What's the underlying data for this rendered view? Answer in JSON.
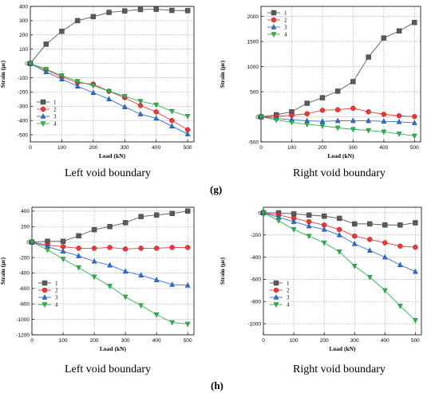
{
  "row_labels": {
    "g": "(g)",
    "h": "(h)"
  },
  "chart_data": [
    {
      "id": "g-left",
      "type": "line",
      "caption": "Left void boundary",
      "xlabel": "Load (kN)",
      "ylabel": "Strain (με)",
      "xlim": [
        0,
        520
      ],
      "ylim": [
        -550,
        400
      ],
      "xticks": [
        0,
        100,
        200,
        300,
        400,
        500
      ],
      "yticks": [
        -500,
        -400,
        -300,
        -200,
        -100,
        0,
        100,
        200,
        300,
        400
      ],
      "grid": true,
      "legend_position": "bottom-left",
      "x": [
        0,
        50,
        100,
        150,
        200,
        250,
        300,
        350,
        400,
        450,
        500
      ],
      "series": [
        {
          "name": "1",
          "color": "#5a5a5a",
          "marker": "square",
          "values": [
            0,
            135,
            225,
            300,
            328,
            358,
            368,
            378,
            380,
            372,
            370
          ]
        },
        {
          "name": "2",
          "color": "#e8393a",
          "marker": "circle",
          "values": [
            0,
            -45,
            -95,
            -135,
            -145,
            -195,
            -240,
            -295,
            -340,
            -400,
            -465
          ]
        },
        {
          "name": "3",
          "color": "#2a6fd6",
          "marker": "triangle-up",
          "values": [
            0,
            -60,
            -110,
            -160,
            -205,
            -250,
            -305,
            -355,
            -385,
            -440,
            -495
          ]
        },
        {
          "name": "4",
          "color": "#2fb34a",
          "marker": "triangle-down",
          "values": [
            0,
            -40,
            -85,
            -125,
            -155,
            -195,
            -230,
            -265,
            -290,
            -335,
            -370
          ]
        }
      ]
    },
    {
      "id": "g-right",
      "type": "line",
      "caption": "Right void boundary",
      "xlabel": "Load (kN)",
      "ylabel": "Strain (με)",
      "xlim": [
        0,
        520
      ],
      "ylim": [
        -500,
        2200
      ],
      "xticks": [
        0,
        100,
        200,
        300,
        400,
        500
      ],
      "yticks": [
        -500,
        0,
        500,
        1000,
        1500,
        2000
      ],
      "grid": true,
      "legend_position": "top-left",
      "x": [
        0,
        50,
        100,
        150,
        200,
        250,
        300,
        350,
        400,
        450,
        500
      ],
      "series": [
        {
          "name": "1",
          "color": "#5a5a5a",
          "marker": "square",
          "values": [
            0,
            40,
            100,
            270,
            380,
            510,
            700,
            1190,
            1570,
            1710,
            1880
          ]
        },
        {
          "name": "2",
          "color": "#e8393a",
          "marker": "circle",
          "values": [
            0,
            10,
            30,
            60,
            130,
            140,
            170,
            100,
            50,
            20,
            5
          ]
        },
        {
          "name": "3",
          "color": "#2a6fd6",
          "marker": "triangle-up",
          "values": [
            0,
            -30,
            -60,
            -80,
            -90,
            -80,
            -80,
            -80,
            -90,
            -100,
            -120
          ]
        },
        {
          "name": "4",
          "color": "#2fb34a",
          "marker": "triangle-down",
          "values": [
            0,
            -60,
            -110,
            -150,
            -180,
            -220,
            -250,
            -270,
            -300,
            -340,
            -380
          ]
        }
      ]
    },
    {
      "id": "h-left",
      "type": "line",
      "caption": "Left void boundary",
      "xlabel": "Load (kN)",
      "ylabel": "Strain (με)",
      "xlim": [
        0,
        520
      ],
      "ylim": [
        -1200,
        450
      ],
      "xticks": [
        0,
        100,
        200,
        300,
        400,
        500
      ],
      "yticks": [
        -1200,
        -1000,
        -800,
        -600,
        -400,
        -200,
        0,
        200,
        400
      ],
      "grid": true,
      "legend_position": "bottom-left",
      "x": [
        0,
        50,
        100,
        150,
        200,
        250,
        300,
        350,
        400,
        450,
        500
      ],
      "series": [
        {
          "name": "1",
          "color": "#5a5a5a",
          "marker": "square",
          "values": [
            0,
            10,
            10,
            80,
            160,
            200,
            250,
            330,
            350,
            370,
            400
          ]
        },
        {
          "name": "2",
          "color": "#e8393a",
          "marker": "circle",
          "values": [
            0,
            -40,
            -60,
            -80,
            -80,
            -70,
            -90,
            -80,
            -80,
            -70,
            -70
          ]
        },
        {
          "name": "3",
          "color": "#2a6fd6",
          "marker": "triangle-up",
          "values": [
            0,
            -60,
            -120,
            -180,
            -250,
            -300,
            -380,
            -430,
            -490,
            -550,
            -560
          ]
        },
        {
          "name": "4",
          "color": "#2fb34a",
          "marker": "triangle-down",
          "values": [
            0,
            -100,
            -220,
            -330,
            -450,
            -570,
            -710,
            -820,
            -940,
            -1040,
            -1060
          ]
        }
      ]
    },
    {
      "id": "h-right",
      "type": "line",
      "caption": "Right void boundary",
      "xlabel": "Load (kN)",
      "ylabel": "Strain (με)",
      "xlim": [
        0,
        520
      ],
      "ylim": [
        -1100,
        50
      ],
      "xticks": [
        0,
        100,
        200,
        300,
        400,
        500
      ],
      "yticks": [
        -1000,
        -800,
        -600,
        -400,
        -200,
        0
      ],
      "grid": true,
      "legend_position": "bottom-left",
      "x": [
        0,
        50,
        100,
        150,
        200,
        250,
        300,
        350,
        400,
        450,
        500
      ],
      "series": [
        {
          "name": "1",
          "color": "#5a5a5a",
          "marker": "square",
          "values": [
            0,
            0,
            -10,
            -20,
            -30,
            -50,
            -100,
            -100,
            -110,
            -110,
            -90
          ]
        },
        {
          "name": "2",
          "color": "#e8393a",
          "marker": "circle",
          "values": [
            0,
            -20,
            -50,
            -80,
            -110,
            -150,
            -210,
            -240,
            -270,
            -300,
            -310
          ]
        },
        {
          "name": "3",
          "color": "#2a6fd6",
          "marker": "triangle-up",
          "values": [
            0,
            -40,
            -80,
            -120,
            -150,
            -200,
            -280,
            -340,
            -400,
            -470,
            -530
          ]
        },
        {
          "name": "4",
          "color": "#2fb34a",
          "marker": "triangle-down",
          "values": [
            0,
            -70,
            -150,
            -210,
            -270,
            -350,
            -480,
            -580,
            -700,
            -840,
            -970
          ]
        }
      ]
    }
  ]
}
